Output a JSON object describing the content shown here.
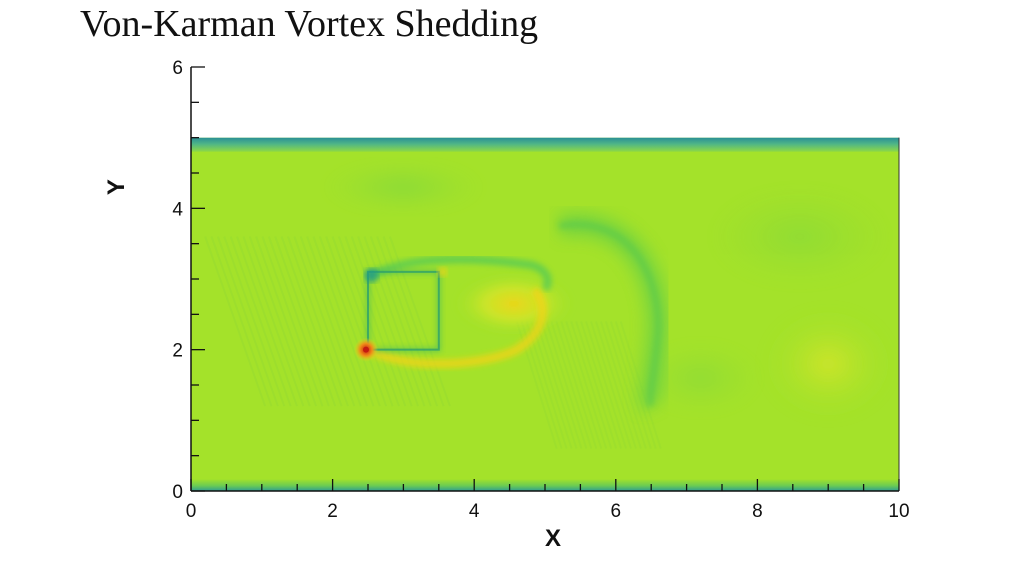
{
  "page": {
    "title": "Von-Karman Vortex Shedding"
  },
  "chart_data": {
    "type": "heatmap",
    "title": "Von-Karman Vortex Shedding",
    "xlabel": "X",
    "ylabel": "Y",
    "xlim": [
      0,
      10
    ],
    "ylim": [
      0,
      6
    ],
    "xticks": [
      0,
      2,
      4,
      6,
      8,
      10
    ],
    "yticks": [
      0,
      2,
      4,
      6
    ],
    "xtick_labels": [
      "0",
      "2",
      "4",
      "6",
      "8",
      "10"
    ],
    "ytick_labels": [
      "0",
      "2",
      "4",
      "6"
    ],
    "x_minor_step": 0.5,
    "y_minor_step": 0.5,
    "domain": {
      "x": [
        0,
        10
      ],
      "y": [
        0,
        5
      ]
    },
    "background_color": "#a4e22a",
    "colors": {
      "base": "#a4e22a",
      "wall": "#2a8f95",
      "wall_edge": "#5dc57a",
      "low": "#62cf4a",
      "mid_low": "#85d838",
      "high": "#d8e628",
      "hot": "#f0d418",
      "peak": "#c41a10"
    },
    "features": [
      {
        "kind": "bluff-body",
        "outline": [
          [
            2.5,
            3.1
          ],
          [
            3.5,
            3.1
          ],
          [
            3.5,
            2.0
          ],
          [
            2.5,
            2.0
          ]
        ]
      },
      {
        "kind": "hot-spot",
        "x": 2.5,
        "y": 2.0,
        "value": "peak"
      },
      {
        "kind": "eddy",
        "x": 4.7,
        "y": 2.65,
        "value": "high"
      },
      {
        "kind": "eddy",
        "x": 9.0,
        "y": 1.8,
        "value": "high"
      },
      {
        "kind": "wake-trace",
        "from": [
          5.6,
          3.3
        ],
        "to": [
          6.5,
          1.2
        ],
        "value": "low"
      }
    ]
  }
}
